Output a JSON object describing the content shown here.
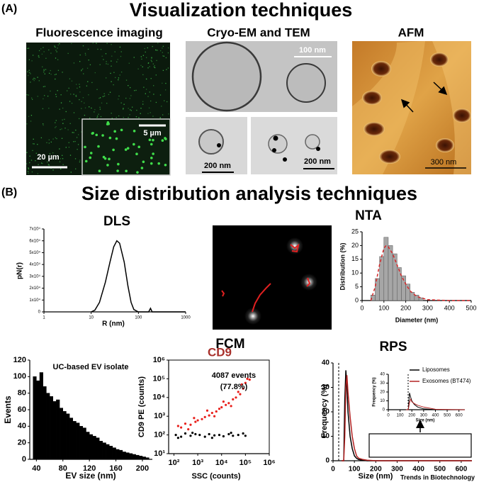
{
  "panel_a": {
    "label": "(A)",
    "title": "Visualization techniques",
    "fluorescence": {
      "title": "Fluorescence imaging",
      "scale_bar": "20 µm",
      "inset_scale_bar": "5 µm"
    },
    "cryo": {
      "title": "Cryo-EM and TEM",
      "scale_bars": [
        "100 nm",
        "200 nm",
        "200 nm"
      ]
    },
    "afm": {
      "title": "AFM",
      "scale_bar": "300 nm"
    }
  },
  "panel_b": {
    "label": "(B)",
    "title": "Size distribution analysis techniques",
    "dls": {
      "type": "line",
      "title": "DLS",
      "xlabel": "R (nm)",
      "ylabel": "pN(r)",
      "xlog": true,
      "xlim": [
        1,
        1000
      ],
      "xticks": [
        1,
        10,
        100,
        1000
      ],
      "ylim": [
        0,
        70000
      ],
      "yticks": [
        0,
        {
          "value": 10000,
          "label": "1x10⁴"
        },
        {
          "value": 20000,
          "label": "2x10⁴"
        },
        {
          "value": 30000,
          "label": "3x10⁴"
        },
        {
          "value": 40000,
          "label": "4x10⁴"
        },
        {
          "value": 50000,
          "label": "5x10⁴"
        },
        {
          "value": 60000,
          "label": "6x10⁴"
        },
        {
          "value": 70000,
          "label": "7x10⁴"
        }
      ],
      "series": [
        {
          "color": "#000000",
          "x": [
            10,
            12,
            15,
            20,
            25,
            30,
            35,
            40,
            50,
            60,
            70,
            80,
            100,
            165,
            180,
            195,
            1000
          ],
          "y": [
            0,
            1500,
            8000,
            25000,
            42000,
            55000,
            60000,
            58000,
            42000,
            22000,
            8000,
            2000,
            0,
            0,
            3000,
            0,
            0
          ]
        }
      ]
    },
    "nta": {
      "type": "histogram",
      "title": "NTA",
      "xlabel": "Diameter (nm)",
      "ylabel": "Distribution (%)",
      "xlim": [
        0,
        500
      ],
      "xticks": [
        0,
        100,
        200,
        300,
        400,
        500
      ],
      "ylim": [
        0,
        25
      ],
      "yticks": [
        0,
        5,
        10,
        15,
        20,
        25
      ],
      "color": "#a6a6a6",
      "bins": [
        40,
        60,
        80,
        100,
        120,
        140,
        160,
        180,
        200,
        220,
        240,
        260,
        280
      ],
      "counts": [
        2,
        8,
        16,
        23,
        20,
        17,
        12,
        9,
        6,
        3,
        2,
        1
      ],
      "series": [
        {
          "color": "#d62728",
          "dashed": true,
          "x": [
            40,
            60,
            80,
            100,
            110,
            120,
            140,
            160,
            180,
            200,
            220,
            250,
            300,
            400,
            500
          ],
          "y": [
            0,
            5,
            13,
            19,
            20,
            19.5,
            17,
            13,
            9,
            6,
            3.5,
            1.5,
            0.3,
            0,
            0
          ]
        }
      ]
    },
    "fcm": {
      "title": "FCM",
      "histogram": {
        "type": "histogram",
        "xlabel": "EV size (nm)",
        "ylabel": "Events",
        "annotation": "UC-based EV isolate",
        "xlim": [
          30,
          215
        ],
        "xticks": [
          40,
          80,
          120,
          160,
          200
        ],
        "ylim": [
          0,
          120
        ],
        "yticks": [
          0,
          20,
          40,
          60,
          80,
          100,
          120
        ],
        "color": "#000000",
        "bins": [
          35,
          40,
          45,
          50,
          55,
          60,
          65,
          70,
          75,
          80,
          85,
          90,
          95,
          100,
          105,
          110,
          115,
          120,
          125,
          130,
          135,
          140,
          145,
          150,
          155,
          160,
          165,
          170,
          175,
          180,
          185,
          190,
          195,
          200,
          205,
          210
        ],
        "counts": [
          100,
          95,
          105,
          88,
          80,
          76,
          70,
          72,
          62,
          58,
          55,
          50,
          46,
          44,
          40,
          38,
          33,
          30,
          28,
          26,
          22,
          20,
          18,
          16,
          14,
          12,
          11,
          9,
          8,
          7,
          6,
          5,
          4,
          3,
          2
        ]
      },
      "scatter": {
        "type": "scatter",
        "title": "CD9",
        "title_color": "#a8302b",
        "xlabel": "SSC (counts)",
        "ylabel": "CD9 PE (counts)",
        "annotation": [
          "4087 events",
          "(77.8%)"
        ],
        "xlog": true,
        "ylog": true,
        "xlim": [
          60,
          1000000
        ],
        "xticks": [
          {
            "value": 100,
            "label": "10²"
          },
          {
            "value": 1000,
            "label": "10³"
          },
          {
            "value": 10000,
            "label": "10⁴"
          },
          {
            "value": 100000,
            "label": "10⁵"
          },
          {
            "value": 1000000,
            "label": "10⁶"
          }
        ],
        "ylim": [
          10,
          1000000
        ],
        "yticks": [
          {
            "value": 10,
            "label": "10¹"
          },
          {
            "value": 100,
            "label": "10²"
          },
          {
            "value": 1000,
            "label": "10³"
          },
          {
            "value": 10000,
            "label": "10⁴"
          },
          {
            "value": 100000,
            "label": "10⁵"
          },
          {
            "value": 1000000,
            "label": "10⁶"
          }
        ],
        "series": [
          {
            "color": "#e8201c",
            "x": [
              150,
              200,
              300,
              500,
              800,
              1000,
              1500,
              2000,
              3000,
              4000,
              6000,
              8000,
              10000,
              15000,
              20000,
              30000,
              40000,
              60000,
              80000,
              100000,
              120000,
              150000,
              50000,
              25000,
              5000,
              700,
              2500,
              12000,
              70000,
              400
            ],
            "y": [
              300,
              250,
              400,
              350,
              500,
              600,
              700,
              900,
              1100,
              1500,
              1800,
              2500,
              3000,
              4000,
              5000,
              8000,
              10000,
              15000,
              30000,
              60000,
              100000,
              90000,
              20000,
              3500,
              1000,
              800,
              2000,
              6000,
              50000,
              200
            ]
          },
          {
            "color": "#000000",
            "x": [
              120,
              200,
              300,
              500,
              800,
              1200,
              2000,
              3000,
              5000,
              8000,
              12000,
              20000,
              30000,
              50000,
              80000,
              150,
              600,
              4000,
              25000,
              100000
            ],
            "y": [
              100,
              80,
              120,
              90,
              110,
              100,
              80,
              110,
              95,
              100,
              85,
              110,
              90,
              100,
              120,
              70,
              130,
              70,
              130,
              90
            ]
          }
        ]
      }
    },
    "rps": {
      "type": "line",
      "title": "RPS",
      "xlabel": "Size (nm)",
      "ylabel": "Frequency  (%)",
      "xlim": [
        0,
        650
      ],
      "xticks": [
        0,
        100,
        200,
        300,
        400,
        500,
        600
      ],
      "ylim": [
        0,
        40
      ],
      "yticks": [
        0,
        10,
        20,
        30,
        40
      ],
      "series": [
        {
          "name": "Liposomes",
          "color": "#000000",
          "x": [
            40,
            50,
            55,
            60,
            65,
            70,
            80,
            90,
            100,
            110,
            120,
            140,
            160,
            200,
            300,
            650
          ],
          "y": [
            0,
            0,
            25,
            37,
            30,
            20,
            10,
            5,
            2,
            1,
            0.5,
            0.2,
            0,
            0,
            0,
            0
          ]
        },
        {
          "name": "Exosomes (BT474)",
          "color": "#b22222",
          "x": [
            40,
            50,
            55,
            60,
            65,
            70,
            80,
            90,
            100,
            110,
            120,
            140,
            160,
            200,
            300,
            650
          ],
          "y": [
            0,
            0,
            10,
            30,
            35,
            28,
            18,
            10,
            5,
            2,
            1,
            0.5,
            0.2,
            0,
            0,
            0
          ]
        }
      ],
      "inset": {
        "type": "line",
        "xlabel": "Size (nm)",
        "ylabel": "Frequency (%)",
        "xlim": [
          0,
          650
        ],
        "xticks": [
          0,
          100,
          200,
          300,
          400,
          500,
          600
        ],
        "ylim": [
          0,
          40
        ],
        "yticks": [
          0,
          10,
          20,
          30,
          40
        ],
        "series": [
          {
            "color": "#000000",
            "x": [
              150,
              170,
              180,
              190,
              200,
              220,
              250,
              300,
              400,
              650
            ],
            "y": [
              0,
              0,
              19,
              14,
              10,
              6,
              3,
              1,
              0,
              0
            ]
          },
          {
            "color": "#b22222",
            "x": [
              150,
              170,
              180,
              190,
              200,
              220,
              250,
              300,
              400,
              650
            ],
            "y": [
              0,
              0,
              8,
              12,
              9,
              7,
              5,
              3,
              0.5,
              0
            ]
          }
        ]
      }
    }
  },
  "footer": "Trends in Biotechnology"
}
